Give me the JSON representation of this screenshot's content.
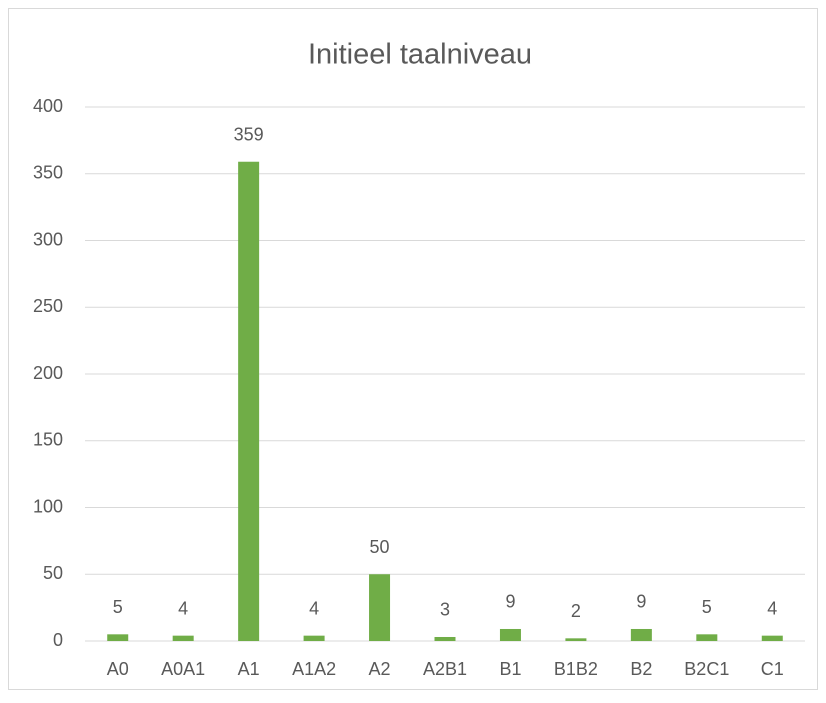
{
  "chart_data": {
    "type": "bar",
    "title": "Initieel taalniveau",
    "categories": [
      "A0",
      "A0A1",
      "A1",
      "A1A2",
      "A2",
      "A2B1",
      "B1",
      "B1B2",
      "B2",
      "B2C1",
      "C1"
    ],
    "values": [
      5,
      4,
      359,
      4,
      50,
      3,
      9,
      2,
      9,
      5,
      4
    ],
    "color": "#70ad47",
    "ylim": [
      0,
      400
    ],
    "yticks": [
      0,
      50,
      100,
      150,
      200,
      250,
      300,
      350,
      400
    ],
    "grid": true
  }
}
